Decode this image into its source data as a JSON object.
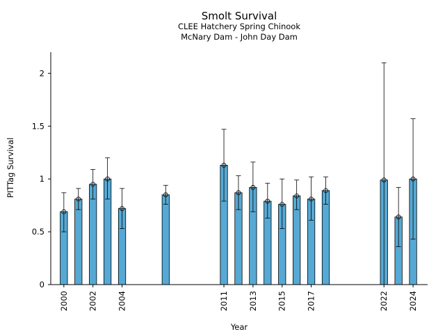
{
  "chart_data": {
    "type": "bar",
    "title": "Smolt Survival",
    "subtitle_lines": [
      "CLEE Hatchery Spring Chinook",
      "McNary Dam - John Day Dam"
    ],
    "xlabel": "Year",
    "ylabel": "PITTag Survival",
    "ylim": [
      0,
      2.2
    ],
    "yticks": [
      0,
      0.5,
      1,
      1.5,
      2
    ],
    "ytick_labels": [
      "0",
      "0.5",
      "1",
      "1.5",
      "2"
    ],
    "xlim": [
      1999.1,
      2025
    ],
    "xticks": [
      2000,
      2002,
      2004,
      2011,
      2013,
      2015,
      2017,
      2022,
      2024
    ],
    "bar_color": "#56a9d4",
    "grid": false,
    "points": [
      {
        "x": 2000,
        "y": 0.69,
        "lo": 0.5,
        "hi": 0.87
      },
      {
        "x": 2001,
        "y": 0.81,
        "lo": 0.71,
        "hi": 0.91
      },
      {
        "x": 2002,
        "y": 0.95,
        "lo": 0.81,
        "hi": 1.09
      },
      {
        "x": 2003,
        "y": 1.0,
        "lo": 0.81,
        "hi": 1.2
      },
      {
        "x": 2004,
        "y": 0.72,
        "lo": 0.53,
        "hi": 0.91
      },
      {
        "x": 2007,
        "y": 0.85,
        "lo": 0.76,
        "hi": 0.94
      },
      {
        "x": 2011,
        "y": 1.13,
        "lo": 0.79,
        "hi": 1.47
      },
      {
        "x": 2012,
        "y": 0.87,
        "lo": 0.71,
        "hi": 1.03
      },
      {
        "x": 2013,
        "y": 0.92,
        "lo": 0.69,
        "hi": 1.16
      },
      {
        "x": 2014,
        "y": 0.79,
        "lo": 0.63,
        "hi": 0.96
      },
      {
        "x": 2015,
        "y": 0.76,
        "lo": 0.53,
        "hi": 1.0
      },
      {
        "x": 2016,
        "y": 0.84,
        "lo": 0.71,
        "hi": 0.99
      },
      {
        "x": 2017,
        "y": 0.81,
        "lo": 0.61,
        "hi": 1.02
      },
      {
        "x": 2018,
        "y": 0.89,
        "lo": 0.76,
        "hi": 1.02
      },
      {
        "x": 2022,
        "y": 0.99,
        "lo": 0.0,
        "hi": 2.1
      },
      {
        "x": 2023,
        "y": 0.64,
        "lo": 0.36,
        "hi": 0.92
      },
      {
        "x": 2024,
        "y": 1.0,
        "lo": 0.43,
        "hi": 1.57
      }
    ]
  }
}
